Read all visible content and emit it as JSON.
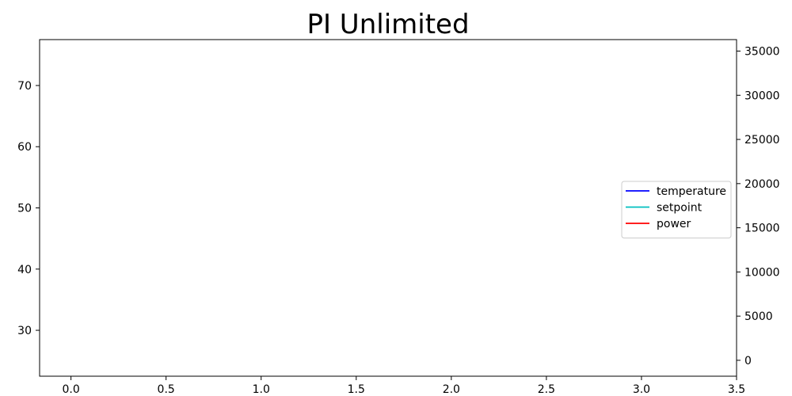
{
  "chart_data": {
    "type": "line",
    "title": "PI Unlimited",
    "xlabel": "",
    "ylabel_left": "",
    "ylabel_right": "",
    "x_axis": {
      "range": [
        -0.165,
        3.5
      ],
      "ticks": [
        0.0,
        0.5,
        1.0,
        1.5,
        2.0,
        2.5,
        3.0,
        3.5
      ],
      "tick_labels": [
        "0.0",
        "0.5",
        "1.0",
        "1.5",
        "2.0",
        "2.5",
        "3.0",
        "3.5"
      ]
    },
    "y_left_axis": {
      "range": [
        22.5,
        77.5
      ],
      "ticks": [
        30,
        40,
        50,
        60,
        70
      ],
      "tick_labels": [
        "30",
        "40",
        "50",
        "60",
        "70"
      ]
    },
    "y_right_axis": {
      "range": [
        -1800,
        36300
      ],
      "ticks": [
        0,
        5000,
        10000,
        15000,
        20000,
        25000,
        30000,
        35000
      ],
      "tick_labels": [
        "0",
        "5000",
        "10000",
        "15000",
        "20000",
        "25000",
        "30000",
        "35000"
      ]
    },
    "grid": false,
    "legend": {
      "placement": "center-right",
      "entries": [
        {
          "name": "temperature",
          "color": "#0000ff",
          "axis": "left"
        },
        {
          "name": "setpoint",
          "color": "#00bfbf",
          "axis": "left"
        },
        {
          "name": "power",
          "color": "#ff0000",
          "axis": "right"
        }
      ]
    },
    "series": [
      {
        "name": "temperature",
        "axis": "left",
        "color": "#0000ff",
        "x": [],
        "y": []
      },
      {
        "name": "setpoint",
        "axis": "left",
        "color": "#00bfbf",
        "x": [],
        "y": []
      },
      {
        "name": "power",
        "axis": "right",
        "color": "#ff0000",
        "x": [],
        "y": []
      }
    ]
  }
}
